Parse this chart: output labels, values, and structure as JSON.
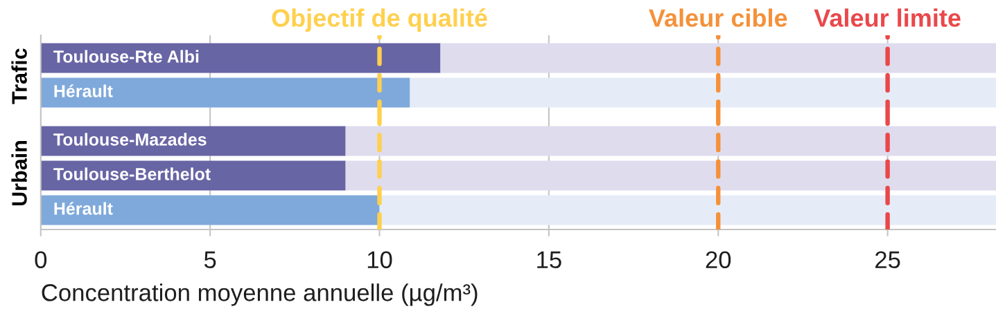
{
  "chart_data": [
    {
      "type": "bar",
      "orientation": "horizontal",
      "stacked": true,
      "ylabel": "Trafic",
      "categories": [
        "Toulouse-Rte Albi",
        "Hérault"
      ],
      "series": [
        {
          "colors": [
            "#6865a5",
            "#7fa9db"
          ],
          "values": [
            11.8,
            10.9
          ]
        },
        {
          "colors": [
            "#dfdcee",
            "#e5ecf7"
          ],
          "values": [
            16.4,
            17.3
          ]
        }
      ],
      "xlim": [
        0,
        28.2
      ],
      "xticks": [
        0,
        5,
        10,
        15,
        20,
        25
      ],
      "grid": "x",
      "tick_labels": "y",
      "ref_lines": [
        {
          "axis": "x",
          "value": 10,
          "label": "Objectif de qualité",
          "color": "#ffd04e",
          "line_style": "dashed"
        },
        {
          "axis": "x",
          "value": 20,
          "label": "Valeur cible",
          "color": "#f4913a",
          "line_style": "dashed"
        },
        {
          "axis": "x",
          "value": 25,
          "label": "Valeur limite",
          "color": "#e9484b",
          "line_style": "dashed"
        }
      ]
    },
    {
      "type": "bar",
      "orientation": "horizontal",
      "stacked": true,
      "ylabel": "Urbain",
      "xlabel": "Concentration moyenne annuelle (µg/m³)",
      "categories": [
        "Toulouse-Mazades",
        "Toulouse-Berthelot",
        "Hérault"
      ],
      "series": [
        {
          "colors": [
            "#6865a5",
            "#6865a5",
            "#7fa9db"
          ],
          "values": [
            9.0,
            9.0,
            10.0
          ]
        },
        {
          "colors": [
            "#dfdcee",
            "#dfdcee",
            "#e5ecf7"
          ],
          "values": [
            19.2,
            19.2,
            18.2
          ]
        }
      ],
      "xlim": [
        0,
        28.2
      ],
      "xticks": [
        0,
        5,
        10,
        15,
        20,
        25
      ],
      "grid": "x",
      "ref_lines": [
        {
          "axis": "x",
          "value": 10,
          "color": "#ffd04e",
          "line_style": "dashed"
        },
        {
          "axis": "x",
          "value": 20,
          "color": "#f4913a",
          "line_style": "dashed"
        },
        {
          "axis": "x",
          "value": 25,
          "color": "#e9484b",
          "line_style": "dashed"
        }
      ]
    }
  ]
}
